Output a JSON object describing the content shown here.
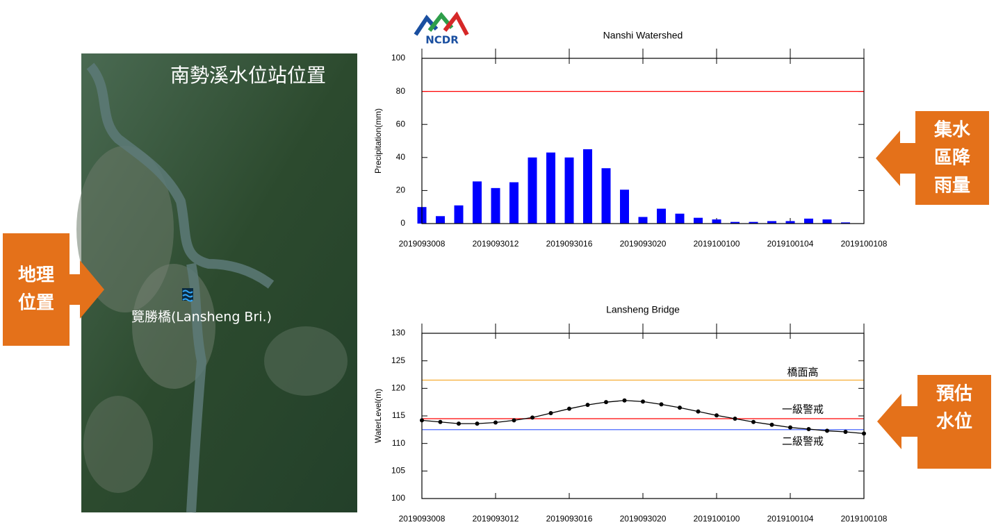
{
  "logo": "NCDR",
  "map": {
    "title": "南勢溪水位站位置",
    "station_label": "覽勝橋(Lansheng Bri.)"
  },
  "callouts": [
    {
      "lines": [
        "地理",
        "位置"
      ]
    },
    {
      "lines": [
        "集水",
        "區降",
        "雨量"
      ]
    },
    {
      "lines": [
        "預估",
        "水位"
      ]
    }
  ],
  "chart_data": [
    {
      "type": "bar",
      "title": "Nanshi Watershed",
      "y_label": "Precipitation(mm)",
      "categories": [
        "2019093008",
        null,
        null,
        null,
        "2019093012",
        null,
        null,
        null,
        "2019093016",
        null,
        null,
        null,
        "2019093020",
        null,
        null,
        null,
        "2019100100",
        null,
        null,
        null,
        "2019100104",
        null,
        null,
        null,
        "2019100108"
      ],
      "values": [
        10,
        4.5,
        11,
        25.5,
        21.5,
        25,
        40,
        43,
        40,
        45,
        33.5,
        20.5,
        4,
        9,
        6,
        3.5,
        2.5,
        1,
        1,
        1.5,
        1.5,
        3,
        2.5,
        0.7,
        null
      ],
      "color": "#0000ff",
      "ylim": [
        0,
        100
      ],
      "yticks": [
        0,
        20,
        40,
        60,
        80,
        100
      ],
      "reference_lines": [
        {
          "value": 80,
          "color": "#ff0000"
        }
      ]
    },
    {
      "type": "line",
      "title": "Lansheng Bridge",
      "y_label": "WaterLevel(m)",
      "categories": [
        "2019093008",
        null,
        null,
        null,
        "2019093012",
        null,
        null,
        null,
        "2019093016",
        null,
        null,
        null,
        "2019093020",
        null,
        null,
        null,
        "2019100100",
        null,
        null,
        null,
        "2019100104",
        null,
        null,
        null,
        "2019100108"
      ],
      "values": [
        114.2,
        113.9,
        113.6,
        113.6,
        113.8,
        114.2,
        114.7,
        115.5,
        116.3,
        117.0,
        117.5,
        117.8,
        117.6,
        117.1,
        116.5,
        115.8,
        115.1,
        114.5,
        113.9,
        113.4,
        112.9,
        112.6,
        112.3,
        112.1,
        111.8
      ],
      "color": "#000000",
      "ylim": [
        100,
        130
      ],
      "yticks": [
        100,
        105,
        110,
        115,
        120,
        125,
        130
      ],
      "reference_lines": [
        {
          "value": 121.5,
          "color": "#f5a623",
          "label": "橋面高"
        },
        {
          "value": 114.5,
          "color": "#ff0000",
          "label": "一級警戒"
        },
        {
          "value": 112.5,
          "color": "#3355ff",
          "label": "二級警戒"
        }
      ]
    }
  ]
}
